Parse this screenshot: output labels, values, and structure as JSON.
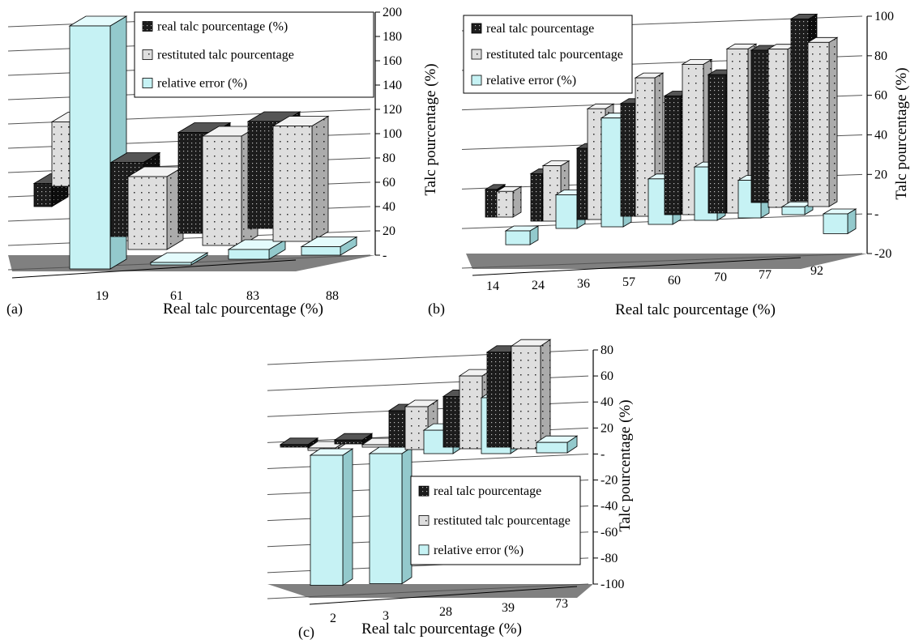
{
  "figure": {
    "panel_labels": [
      "(a)",
      "(b)",
      "(c)"
    ]
  },
  "legend_symbols": {
    "real": "■",
    "restituted": "⊞",
    "error": "□"
  },
  "colors": {
    "real": "#1c1c1c",
    "restituted": "#dcdcdc",
    "error": "#c6f2f4",
    "floor": "#808080",
    "grid": "#555555"
  },
  "chart_data": [
    {
      "panel": "(a)",
      "type": "bar",
      "categories": [
        "19",
        "61",
        "83",
        "88"
      ],
      "series": [
        {
          "name": "real talc pourcentage (%)",
          "values": [
            19,
            61,
            83,
            88
          ]
        },
        {
          "name": "restituted talc pourcentage",
          "values": [
            53,
            60,
            90,
            95
          ]
        },
        {
          "name": "relative error (%)",
          "values": [
            200,
            2,
            8,
            7
          ]
        }
      ],
      "xlabel": "Real talc pourcentage (%)",
      "ylabel": "Talc pourcentage (%)",
      "yticks": [
        "-",
        "20",
        "40",
        "60",
        "80",
        "100",
        "120",
        "140",
        "160",
        "180",
        "200"
      ],
      "ylim": [
        0,
        200
      ],
      "legend_position": "top"
    },
    {
      "panel": "(b)",
      "type": "bar",
      "categories": [
        "14",
        "24",
        "36",
        "57",
        "60",
        "70",
        "77",
        "92"
      ],
      "series": [
        {
          "name": "real talc pourcentage",
          "values": [
            14,
            24,
            36,
            57,
            60,
            70,
            77,
            92
          ]
        },
        {
          "name": "restituted talc pourcentage",
          "values": [
            13,
            28,
            56,
            70,
            76,
            83,
            80,
            83
          ]
        },
        {
          "name": "relative error (%)",
          "values": [
            -7,
            17,
            55,
            23,
            27,
            19,
            4,
            -10
          ]
        }
      ],
      "xlabel": "Real talc pourcentage (%)",
      "ylabel": "Talc pourcentage (%)",
      "yticks": [
        "-20",
        "-",
        "20",
        "40",
        "60",
        "80",
        "100"
      ],
      "ylim": [
        -20,
        100
      ],
      "legend_position": "top-left"
    },
    {
      "panel": "(c)",
      "type": "bar",
      "categories": [
        "2",
        "3",
        "28",
        "39",
        "73"
      ],
      "series": [
        {
          "name": "real talc pourcentage",
          "values": [
            2,
            3,
            28,
            39,
            73
          ]
        },
        {
          "name": "restituted talc pourcentage",
          "values": [
            0,
            0,
            33,
            56,
            79
          ]
        },
        {
          "name": "relative error (%)",
          "values": [
            -100,
            -100,
            18,
            43,
            8
          ]
        }
      ],
      "xlabel": "Real talc pourcentage (%)",
      "ylabel": "Talc pourcentage (%)",
      "yticks": [
        "-100",
        "-80",
        "-60",
        "-40",
        "-20",
        "-",
        "20",
        "40",
        "60",
        "80"
      ],
      "ylim": [
        -100,
        80
      ],
      "legend_position": "bottom-right"
    }
  ]
}
